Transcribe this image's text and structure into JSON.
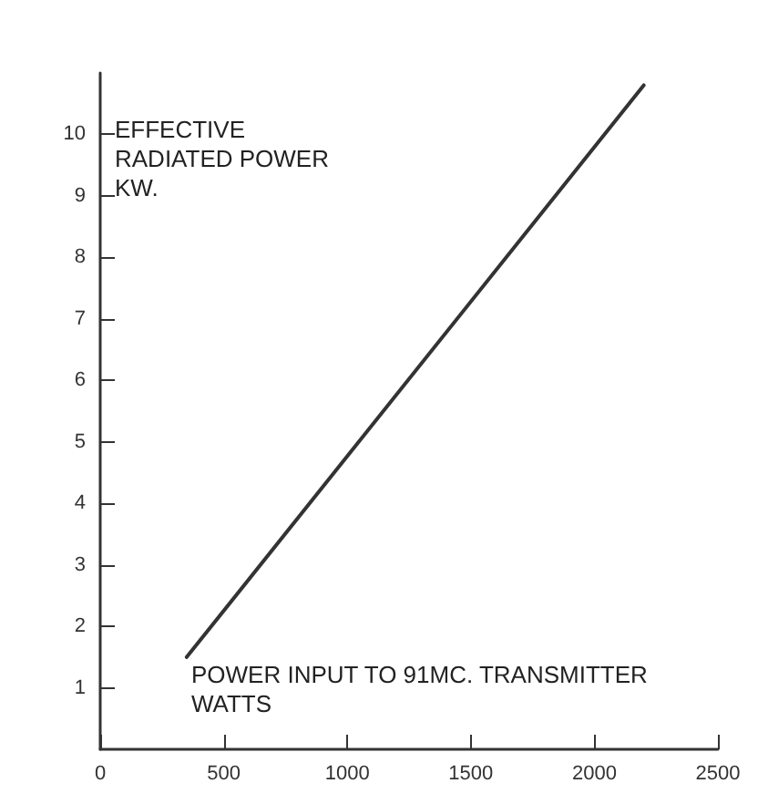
{
  "chart_data": {
    "type": "line",
    "xlabel": "POWER INPUT TO 91MC. TRANSMITTER WATTS",
    "ylabel": "EFFECTIVE RADIATED POWER KW.",
    "series": [
      {
        "color": "#333333",
        "x": [
          350,
          2200
        ],
        "values": [
          1.5,
          10.8
        ]
      }
    ],
    "xlim": [
      0,
      2500
    ],
    "xticks": [
      0,
      500,
      1000,
      1500,
      2000,
      2500
    ],
    "ylim": [
      0,
      11
    ],
    "yticks": [
      1,
      2,
      3,
      4,
      5,
      6,
      7,
      8,
      9,
      10
    ],
    "grid": false,
    "marker": "none",
    "line_style": "solid"
  }
}
